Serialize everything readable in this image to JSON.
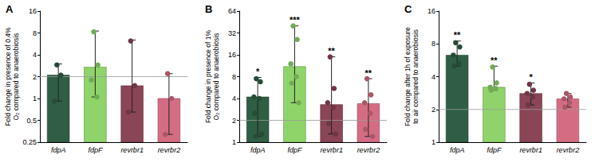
{
  "chart_data": [
    {
      "type": "bar",
      "title": "A",
      "y_label": "Fold change in presence of 0.4% O₂ compared to anaerobiosis",
      "categories": [
        "fdpA",
        "fdpF",
        "revrbr1",
        "revrbr2"
      ],
      "values": [
        2.1,
        2.7,
        1.5,
        1.0
      ],
      "error_low": [
        0.92,
        1.05,
        0.65,
        0.32
      ],
      "error_high": [
        3.0,
        8.5,
        6.4,
        2.2
      ],
      "points": [
        [
          2.9,
          2.1,
          0.92
        ],
        [
          8.3,
          2.9,
          1.8,
          1.05
        ],
        [
          6.2,
          1.5,
          0.65
        ],
        [
          2.2,
          1.0,
          0.32
        ]
      ],
      "annotations": [
        null,
        null,
        null,
        null
      ],
      "colors": [
        "#2f5e45",
        "#8fd46a",
        "#8a4556",
        "#d46d83"
      ],
      "ylim": [
        0.25,
        16
      ],
      "yticks": [
        0.25,
        0.5,
        1,
        2,
        4,
        8,
        16
      ],
      "log": "y",
      "grid": false,
      "reference_line": 2
    },
    {
      "type": "bar",
      "title": "B",
      "y_label": "Fold change in presence of 1% O₂ compared to anaerobiosis",
      "categories": [
        "fdpA",
        "fdpF",
        "revrbr1",
        "revrbr2"
      ],
      "values": [
        4.2,
        11,
        3.3,
        3.4
      ],
      "error_low": [
        1.2,
        3.5,
        1.3,
        1.2
      ],
      "error_high": [
        7.8,
        40,
        15,
        7.5
      ],
      "points": [
        [
          7.5,
          6.8,
          4.2,
          4.0,
          2.5,
          1.3,
          1.2
        ],
        [
          40,
          26,
          12,
          8,
          6.5,
          3.5
        ],
        [
          15,
          5.5,
          3.5,
          3.0,
          1.8,
          1.3
        ],
        [
          7.5,
          4.5,
          3.5,
          2.5,
          1.5,
          1.2
        ]
      ],
      "annotations": [
        "*",
        "***",
        "**",
        "**"
      ],
      "colors": [
        "#2f5e45",
        "#8fd46a",
        "#8a4556",
        "#d46d83"
      ],
      "ylim": [
        1,
        64
      ],
      "yticks": [
        1,
        2,
        4,
        8,
        16,
        32,
        64
      ],
      "log": "y",
      "grid": false,
      "reference_line": 2
    },
    {
      "type": "bar",
      "title": "C",
      "y_label": "Fold change after 1h of exposure to air compared to anaerobiosis",
      "categories": [
        "fdpA",
        "fdpF",
        "revrbr1",
        "revrbr2"
      ],
      "values": [
        6.3,
        3.2,
        2.8,
        2.5
      ],
      "error_low": [
        5.0,
        3.0,
        2.2,
        2.1
      ],
      "error_high": [
        8.5,
        5.0,
        3.5,
        2.8
      ],
      "points": [
        [
          8.2,
          7.5,
          6.3,
          5.3,
          5.0
        ],
        [
          4.9,
          3.5,
          3.2,
          3.1,
          3.0
        ],
        [
          3.4,
          3.0,
          2.8,
          2.6,
          2.2
        ],
        [
          2.8,
          2.6,
          2.5,
          2.3,
          2.1
        ]
      ],
      "annotations": [
        "**",
        "**",
        "*",
        null
      ],
      "colors": [
        "#2f5e45",
        "#8fd46a",
        "#8a4556",
        "#d46d83"
      ],
      "ylim": [
        1,
        16
      ],
      "yticks": [
        1,
        2,
        4,
        8,
        16
      ],
      "log": "y",
      "grid": false,
      "reference_line": 2
    }
  ]
}
